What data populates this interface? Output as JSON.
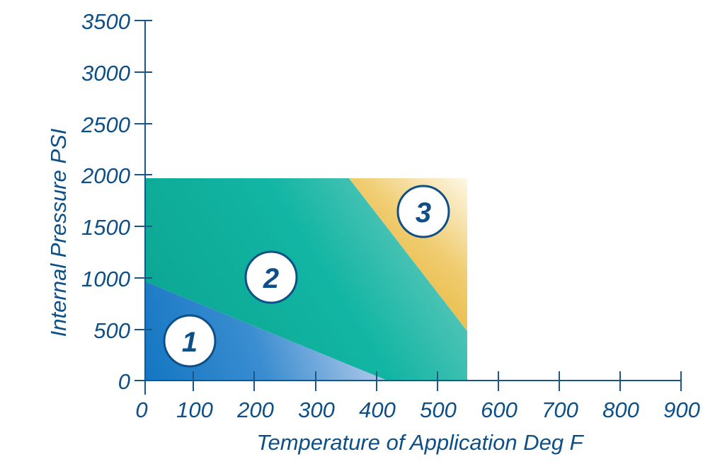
{
  "chart_data": {
    "type": "area",
    "title": "",
    "xlabel": "Temperature of Application Deg F",
    "ylabel": "Internal Pressure PSI",
    "xlim": [
      0,
      900
    ],
    "ylim": [
      0,
      3500
    ],
    "x_ticks": [
      "0",
      "100",
      "200",
      "300",
      "400",
      "500",
      "600",
      "700",
      "800",
      "900"
    ],
    "y_ticks": [
      "0",
      "500",
      "1000",
      "1500",
      "2000",
      "2500",
      "3000",
      "3500"
    ],
    "grid": false,
    "legend": "none",
    "regions": [
      {
        "name": "1",
        "label": "1",
        "color": "#1a7cc6",
        "color_fade": "#c7d5ee",
        "polygon": [
          [
            0,
            0
          ],
          [
            0,
            950
          ],
          [
            420,
            0
          ]
        ]
      },
      {
        "name": "2",
        "label": "2",
        "color": "#0fae98",
        "color_fade": "#5cc4b8",
        "polygon": [
          [
            0,
            950
          ],
          [
            0,
            1970
          ],
          [
            350,
            1970
          ],
          [
            550,
            480
          ],
          [
            550,
            0
          ],
          [
            420,
            0
          ]
        ]
      },
      {
        "name": "3",
        "label": "3",
        "color": "#e8b94a",
        "color_fade": "#fffdf5",
        "polygon": [
          [
            350,
            1970
          ],
          [
            550,
            1970
          ],
          [
            550,
            480
          ]
        ]
      }
    ]
  },
  "axes": {
    "x_title": "Temperature of Application Deg F",
    "y_title": "Internal Pressure PSI",
    "x_ticks": [
      "0",
      "100",
      "200",
      "300",
      "400",
      "500",
      "600",
      "700",
      "800",
      "900"
    ],
    "y_ticks": [
      "0",
      "500",
      "1000",
      "1500",
      "2000",
      "2500",
      "3000",
      "3500"
    ]
  },
  "zones": {
    "z1": "1",
    "z2": "2",
    "z3": "3"
  },
  "colors": {
    "axis": "#1b5586",
    "text": "#0d4f86",
    "zone1": "#1a7cc6",
    "zone2": "#0fae98",
    "zone3": "#e8b94a"
  }
}
